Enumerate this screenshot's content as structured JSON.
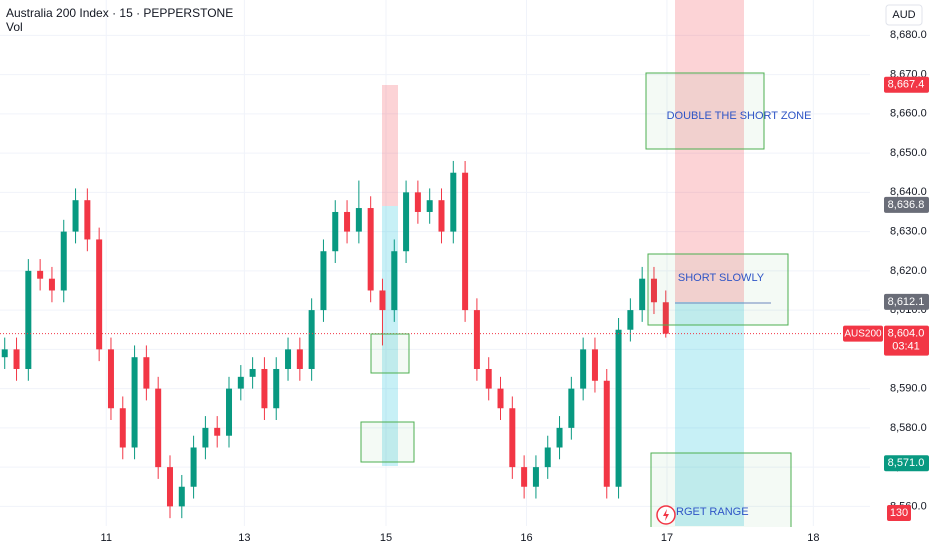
{
  "header": {
    "title": "Australia 200 Index · 15 · PEPPERSTONE",
    "volume_label": "Vol",
    "currency": "AUD"
  },
  "chart_data": {
    "type": "candlestick",
    "open": [
      8598,
      8600,
      8595,
      8620,
      8618,
      8615,
      8630,
      8638,
      8628,
      8600,
      8585,
      8575,
      8598,
      8590,
      8570,
      8560,
      8565,
      8575,
      8580,
      8578,
      8590,
      8593,
      8595,
      8585,
      8595,
      8600,
      8595,
      8610,
      8625,
      8635,
      8630,
      8636,
      8615,
      8610,
      8625,
      8640,
      8635,
      8638,
      8630,
      8645,
      8610,
      8595,
      8590,
      8585,
      8570,
      8565,
      8570,
      8575,
      8580,
      8590,
      8600,
      8592,
      8565,
      8605,
      8610,
      8618,
      8612
    ],
    "high": [
      8603,
      8603,
      8623,
      8623,
      8621,
      8633,
      8641,
      8641,
      8631,
      8603,
      8588,
      8601,
      8601,
      8593,
      8573,
      8568,
      8578,
      8583,
      8583,
      8593,
      8596,
      8598,
      8598,
      8598,
      8603,
      8603,
      8613,
      8628,
      8638,
      8638,
      8643,
      8639,
      8618,
      8628,
      8643,
      8643,
      8641,
      8641,
      8648,
      8648,
      8613,
      8598,
      8593,
      8588,
      8573,
      8573,
      8578,
      8583,
      8593,
      8603,
      8603,
      8595,
      8608,
      8613,
      8621,
      8621,
      8615
    ],
    "low": [
      8595,
      8592,
      8592,
      8615,
      8612,
      8612,
      8627,
      8625,
      8597,
      8582,
      8572,
      8572,
      8587,
      8567,
      8557,
      8557,
      8562,
      8572,
      8575,
      8575,
      8587,
      8590,
      8582,
      8582,
      8592,
      8592,
      8592,
      8607,
      8622,
      8627,
      8627,
      8612,
      8601,
      8607,
      8622,
      8632,
      8632,
      8627,
      8627,
      8607,
      8592,
      8587,
      8582,
      8567,
      8562,
      8562,
      8567,
      8572,
      8577,
      8587,
      8589,
      8562,
      8562,
      8602,
      8607,
      8609,
      8603
    ],
    "close": [
      8600,
      8595,
      8620,
      8618,
      8615,
      8630,
      8638,
      8628,
      8600,
      8585,
      8575,
      8598,
      8590,
      8570,
      8560,
      8565,
      8575,
      8580,
      8578,
      8590,
      8593,
      8595,
      8585,
      8595,
      8600,
      8595,
      8610,
      8625,
      8635,
      8630,
      8636,
      8615,
      8610,
      8625,
      8640,
      8635,
      8638,
      8630,
      8645,
      8610,
      8595,
      8590,
      8585,
      8570,
      8565,
      8570,
      8575,
      8580,
      8590,
      8600,
      8592,
      8565,
      8605,
      8610,
      8618,
      8612,
      8604
    ],
    "xlim": [
      -0.4,
      73.3
    ],
    "xticks": [
      {
        "value": 8.6,
        "label": "11"
      },
      {
        "value": 20.3,
        "label": "13"
      },
      {
        "value": 32.3,
        "label": "15"
      },
      {
        "value": 44.2,
        "label": "16"
      },
      {
        "value": 56.1,
        "label": "17"
      },
      {
        "value": 68.5,
        "label": "18"
      }
    ],
    "ylim": [
      8555,
      8689
    ],
    "yticks": [
      {
        "value": 8560,
        "label": "8,560.0"
      },
      {
        "value": 8570,
        "label": "8,570.0"
      },
      {
        "value": 8580,
        "label": "8,580.0"
      },
      {
        "value": 8590,
        "label": "8,590.0"
      },
      {
        "value": 8600,
        "label": "8,600.0"
      },
      {
        "value": 8610,
        "label": "8,610.0"
      },
      {
        "value": 8620,
        "label": "8,620.0"
      },
      {
        "value": 8630,
        "label": "8,630.0"
      },
      {
        "value": 8640,
        "label": "8,640.0"
      },
      {
        "value": 8650,
        "label": "8,650.0"
      },
      {
        "value": 8660,
        "label": "8,660.0"
      },
      {
        "value": 8670,
        "label": "8,670.0"
      },
      {
        "value": 8680,
        "label": "8,680.0"
      }
    ],
    "grid": true,
    "up_color": "#089981",
    "down_color": "#f23645",
    "price_labels": [
      {
        "value": 8667.4,
        "label": "8,667.4",
        "color": "#f23645"
      },
      {
        "value": 8636.8,
        "label": "8,636.8",
        "color": "#6a6d78"
      },
      {
        "value": 8612.1,
        "label": "8,612.1",
        "color": "#6a6d78"
      },
      {
        "value": 8571,
        "label": "8,571.0",
        "color": "#089981"
      }
    ],
    "last_price": {
      "name": "AUS200",
      "value": 8604,
      "label": "8,604.0",
      "countdown": "03:41",
      "color": "#f23645"
    },
    "volume_last": 130
  },
  "annotations": [
    "DOUBLE THE SHORT ZONE",
    "SHORT SLOWLY",
    "RGET RANGE"
  ]
}
